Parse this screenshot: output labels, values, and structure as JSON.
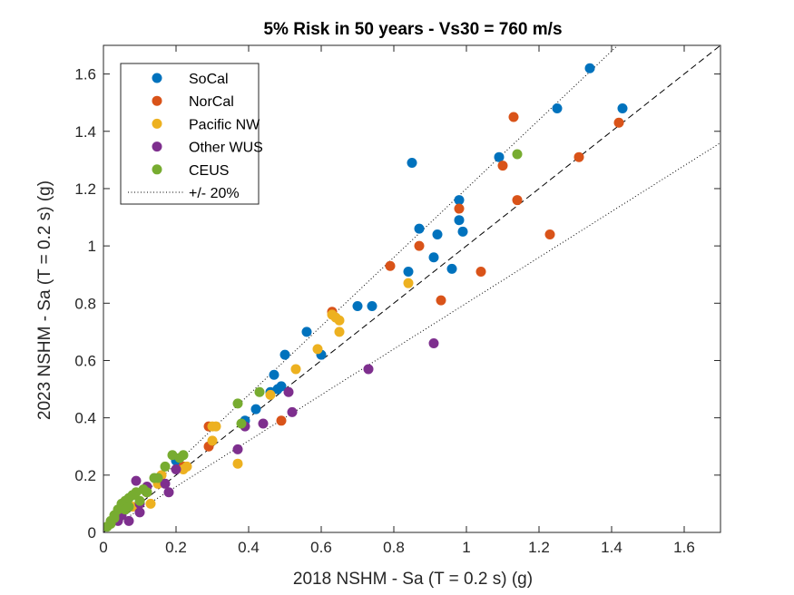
{
  "chart_data": {
    "type": "scatter",
    "title": "5% Risk in 50 years - Vs30 = 760 m/s",
    "xlabel": "2018 NSHM - Sa (T = 0.2 s) (g)",
    "ylabel": "2023 NSHM - Sa (T = 0.2 s) (g)",
    "xlim": [
      0,
      1.7
    ],
    "ylim": [
      0,
      1.7
    ],
    "xticks": [
      "0",
      "0.2",
      "0.4",
      "0.6",
      "0.8",
      "1",
      "1.2",
      "1.4",
      "1.6"
    ],
    "yticks": [
      "0",
      "0.2",
      "0.4",
      "0.6",
      "0.8",
      "1",
      "1.2",
      "1.4",
      "1.6"
    ],
    "grid": false,
    "legend_position": "top-left",
    "series": [
      {
        "name": "SoCal",
        "color": "#0072BD",
        "points": [
          [
            1.34,
            1.62
          ],
          [
            1.43,
            1.48
          ],
          [
            1.25,
            1.48
          ],
          [
            1.09,
            1.31
          ],
          [
            0.85,
            1.29
          ],
          [
            0.98,
            1.16
          ],
          [
            0.98,
            1.09
          ],
          [
            0.99,
            1.05
          ],
          [
            0.87,
            1.06
          ],
          [
            0.92,
            1.04
          ],
          [
            0.91,
            0.96
          ],
          [
            0.96,
            0.92
          ],
          [
            0.84,
            0.91
          ],
          [
            0.7,
            0.79
          ],
          [
            0.74,
            0.79
          ],
          [
            0.56,
            0.7
          ],
          [
            0.5,
            0.62
          ],
          [
            0.6,
            0.62
          ],
          [
            0.47,
            0.55
          ],
          [
            0.49,
            0.51
          ],
          [
            0.48,
            0.5
          ],
          [
            0.46,
            0.49
          ],
          [
            0.42,
            0.43
          ],
          [
            0.39,
            0.39
          ],
          [
            0.2,
            0.25
          ]
        ]
      },
      {
        "name": "NorCal",
        "color": "#D95319",
        "points": [
          [
            1.13,
            1.45
          ],
          [
            1.42,
            1.43
          ],
          [
            1.1,
            1.28
          ],
          [
            1.31,
            1.31
          ],
          [
            1.14,
            1.16
          ],
          [
            0.98,
            1.13
          ],
          [
            0.87,
            1.0
          ],
          [
            0.79,
            0.93
          ],
          [
            1.04,
            0.91
          ],
          [
            1.23,
            1.04
          ],
          [
            0.93,
            0.81
          ],
          [
            0.63,
            0.77
          ],
          [
            0.49,
            0.39
          ],
          [
            0.29,
            0.37
          ],
          [
            0.29,
            0.3
          ],
          [
            0.22,
            0.23
          ],
          [
            0.12,
            0.14
          ]
        ]
      },
      {
        "name": "Pacific NW",
        "color": "#EDB120",
        "points": [
          [
            0.63,
            0.76
          ],
          [
            0.65,
            0.74
          ],
          [
            0.64,
            0.75
          ],
          [
            0.65,
            0.7
          ],
          [
            0.59,
            0.64
          ],
          [
            0.84,
            0.87
          ],
          [
            0.53,
            0.57
          ],
          [
            0.46,
            0.48
          ],
          [
            0.3,
            0.37
          ],
          [
            0.31,
            0.37
          ],
          [
            0.3,
            0.32
          ],
          [
            0.23,
            0.23
          ],
          [
            0.22,
            0.22
          ],
          [
            0.37,
            0.24
          ],
          [
            0.13,
            0.1
          ],
          [
            0.15,
            0.17
          ],
          [
            0.08,
            0.09
          ],
          [
            0.16,
            0.2
          ]
        ]
      },
      {
        "name": "Other WUS",
        "color": "#7E2F8E",
        "points": [
          [
            0.91,
            0.66
          ],
          [
            0.73,
            0.57
          ],
          [
            0.51,
            0.49
          ],
          [
            0.52,
            0.42
          ],
          [
            0.44,
            0.38
          ],
          [
            0.39,
            0.37
          ],
          [
            0.37,
            0.29
          ],
          [
            0.2,
            0.22
          ],
          [
            0.17,
            0.17
          ],
          [
            0.12,
            0.16
          ],
          [
            0.09,
            0.18
          ],
          [
            0.07,
            0.04
          ],
          [
            0.1,
            0.07
          ],
          [
            0.05,
            0.06
          ],
          [
            0.04,
            0.04
          ],
          [
            0.18,
            0.14
          ],
          [
            0.1,
            0.1
          ]
        ]
      },
      {
        "name": "CEUS",
        "color": "#77AC30",
        "points": [
          [
            1.14,
            1.32
          ],
          [
            0.37,
            0.45
          ],
          [
            0.43,
            0.49
          ],
          [
            0.38,
            0.38
          ],
          [
            0.19,
            0.27
          ],
          [
            0.21,
            0.26
          ],
          [
            0.22,
            0.27
          ],
          [
            0.17,
            0.23
          ],
          [
            0.14,
            0.19
          ],
          [
            0.15,
            0.19
          ],
          [
            0.11,
            0.15
          ],
          [
            0.12,
            0.14
          ],
          [
            0.09,
            0.14
          ],
          [
            0.08,
            0.13
          ],
          [
            0.07,
            0.12
          ],
          [
            0.06,
            0.11
          ],
          [
            0.05,
            0.1
          ],
          [
            0.04,
            0.08
          ],
          [
            0.06,
            0.08
          ],
          [
            0.03,
            0.06
          ],
          [
            0.03,
            0.05
          ],
          [
            0.02,
            0.04
          ],
          [
            0.02,
            0.03
          ],
          [
            0.01,
            0.02
          ],
          [
            0.07,
            0.09
          ],
          [
            0.1,
            0.11
          ]
        ]
      }
    ],
    "reference_lines": [
      {
        "name": "1:1",
        "style": "dashed",
        "slope": 1.0
      },
      {
        "name": "+/- 20%",
        "style": "dotted",
        "slopes": [
          1.2,
          0.8
        ]
      }
    ]
  }
}
